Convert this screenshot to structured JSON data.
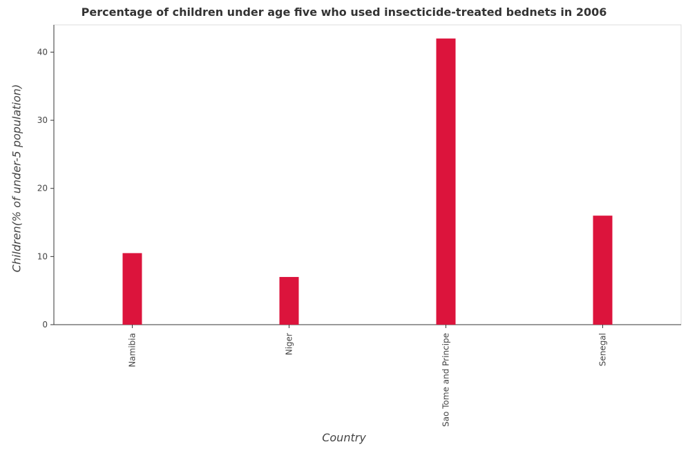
{
  "chart_data": {
    "type": "bar",
    "title": "Percentage of children under age five who used insecticide-treated bednets in 2006",
    "xlabel": "Country",
    "ylabel": "Children(% of under-5 population)",
    "categories": [
      "Namibia",
      "Niger",
      "Sao Tome and Principe",
      "Senegal"
    ],
    "values": [
      10.5,
      7.0,
      42.0,
      16.0
    ],
    "yticks": [
      0,
      10,
      20,
      30,
      40
    ],
    "ylim": [
      0,
      44
    ],
    "grid": false,
    "bar_color": "#dc143c"
  }
}
